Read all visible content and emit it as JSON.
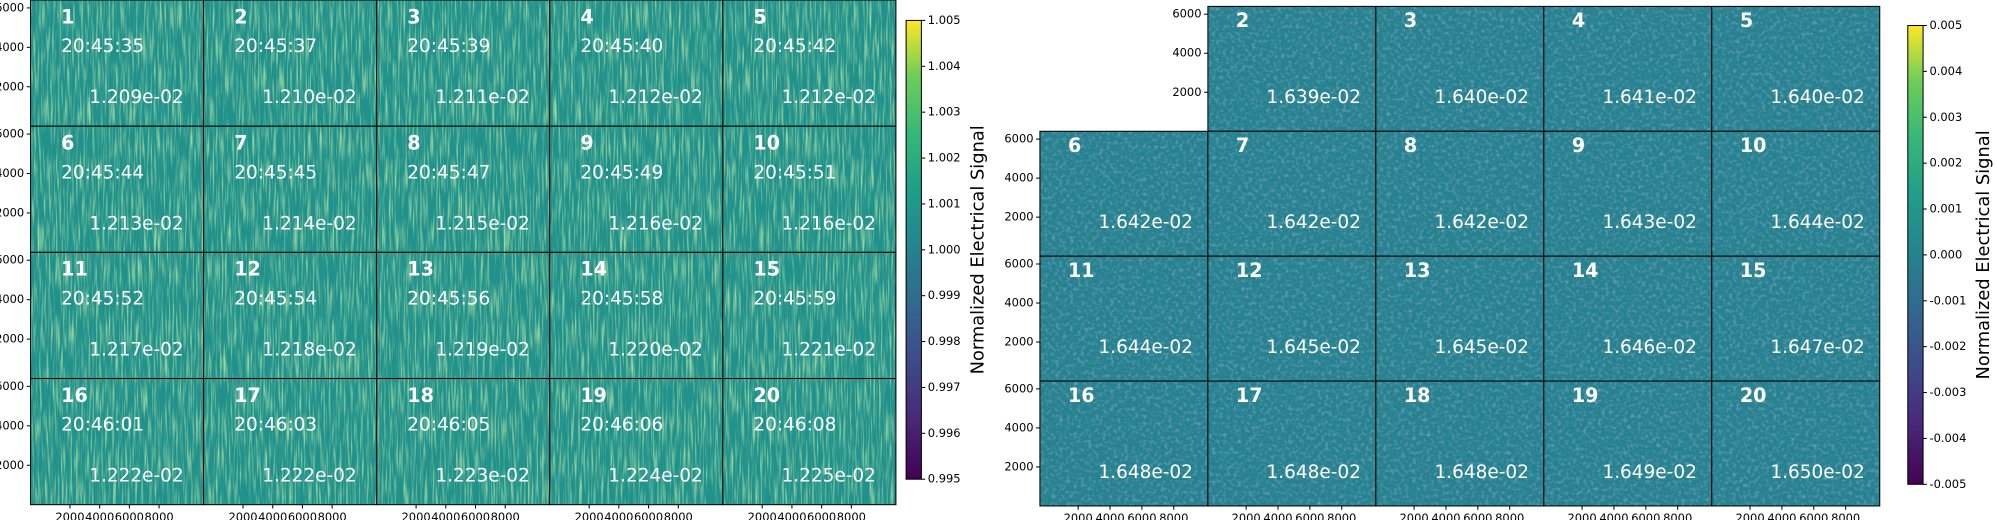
{
  "chart_data": [
    {
      "type": "image-grid",
      "cmap": "viridis",
      "columns": 5,
      "colorbar_label": "Normalized Electrical Signal",
      "clim": [
        0.995,
        1.005
      ],
      "cticks": [
        0.995,
        0.996,
        0.997,
        0.998,
        0.999,
        {
          "value": 1,
          "label": "1.000"
        },
        1.001,
        1.002,
        1.003,
        1.004,
        1.005
      ],
      "xlim": [
        -650,
        11000
      ],
      "xticks": [
        2000,
        4000,
        6000,
        8000
      ],
      "ylim": [
        0,
        6400
      ],
      "yticks": [
        2000,
        4000,
        6000
      ],
      "panels": [
        {
          "label": "1",
          "time": "20:45:35",
          "value": "1.209e-02"
        },
        {
          "label": "2",
          "time": "20:45:37",
          "value": "1.210e-02"
        },
        {
          "label": "3",
          "time": "20:45:39",
          "value": "1.211e-02"
        },
        {
          "label": "4",
          "time": "20:45:40",
          "value": "1.212e-02"
        },
        {
          "label": "5",
          "time": "20:45:42",
          "value": "1.212e-02"
        },
        {
          "label": "6",
          "time": "20:45:44",
          "value": "1.213e-02"
        },
        {
          "label": "7",
          "time": "20:45:45",
          "value": "1.214e-02"
        },
        {
          "label": "8",
          "time": "20:45:47",
          "value": "1.215e-02"
        },
        {
          "label": "9",
          "time": "20:45:49",
          "value": "1.216e-02"
        },
        {
          "label": "10",
          "time": "20:45:51",
          "value": "1.216e-02"
        },
        {
          "label": "11",
          "time": "20:45:52",
          "value": "1.217e-02"
        },
        {
          "label": "12",
          "time": "20:45:54",
          "value": "1.218e-02"
        },
        {
          "label": "13",
          "time": "20:45:56",
          "value": "1.219e-02"
        },
        {
          "label": "14",
          "time": "20:45:58",
          "value": "1.220e-02"
        },
        {
          "label": "15",
          "time": "20:45:59",
          "value": "1.221e-02"
        },
        {
          "label": "16",
          "time": "20:46:01",
          "value": "1.222e-02"
        },
        {
          "label": "17",
          "time": "20:46:03",
          "value": "1.222e-02"
        },
        {
          "label": "18",
          "time": "20:46:05",
          "value": "1.223e-02"
        },
        {
          "label": "19",
          "time": "20:46:06",
          "value": "1.224e-02"
        },
        {
          "label": "20",
          "time": "20:46:08",
          "value": "1.225e-02"
        }
      ]
    },
    {
      "type": "image-grid",
      "cmap": "viridis",
      "columns": 5,
      "colorbar_label": "Normalized Electrical Signal",
      "clim": [
        -0.005,
        0.005
      ],
      "cticks": [
        -0.005,
        -0.004,
        -0.003,
        -0.002,
        -0.001,
        {
          "value": 0,
          "label": "0.000"
        },
        0.001,
        0.002,
        0.003,
        0.004,
        0.005
      ],
      "xlim": [
        -400,
        10140
      ],
      "xticks": [
        2000,
        4000,
        6000,
        8000
      ],
      "ylim": [
        0,
        6400
      ],
      "yticks": [
        2000,
        4000,
        6000
      ],
      "panels": [
        {
          "label": "2",
          "value": "1.639e-02"
        },
        {
          "label": "3",
          "value": "1.640e-02"
        },
        {
          "label": "4",
          "value": "1.641e-02"
        },
        {
          "label": "5",
          "value": "1.640e-02"
        },
        {
          "label": "6",
          "value": "1.642e-02"
        },
        {
          "label": "7",
          "value": "1.642e-02"
        },
        {
          "label": "8",
          "value": "1.642e-02"
        },
        {
          "label": "9",
          "value": "1.643e-02"
        },
        {
          "label": "10",
          "value": "1.644e-02"
        },
        {
          "label": "11",
          "value": "1.644e-02"
        },
        {
          "label": "12",
          "value": "1.645e-02"
        },
        {
          "label": "13",
          "value": "1.645e-02"
        },
        {
          "label": "14",
          "value": "1.646e-02"
        },
        {
          "label": "15",
          "value": "1.647e-02"
        },
        {
          "label": "16",
          "value": "1.648e-02"
        },
        {
          "label": "17",
          "value": "1.648e-02"
        },
        {
          "label": "18",
          "value": "1.648e-02"
        },
        {
          "label": "19",
          "value": "1.649e-02"
        },
        {
          "label": "20",
          "value": "1.650e-02"
        }
      ]
    }
  ]
}
